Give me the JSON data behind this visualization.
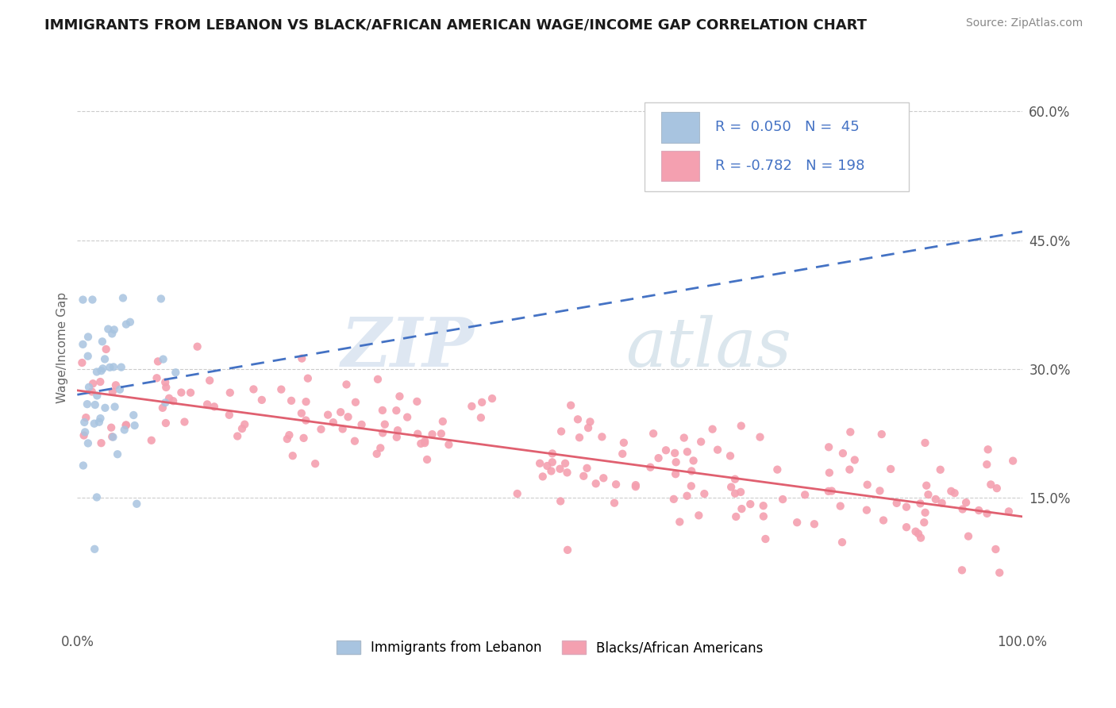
{
  "title": "IMMIGRANTS FROM LEBANON VS BLACK/AFRICAN AMERICAN WAGE/INCOME GAP CORRELATION CHART",
  "source": "Source: ZipAtlas.com",
  "ylabel": "Wage/Income Gap",
  "x_min": 0.0,
  "x_max": 1.0,
  "y_min": 0.0,
  "y_max": 0.65,
  "y_ticks": [
    0.15,
    0.3,
    0.45,
    0.6
  ],
  "y_tick_labels": [
    "15.0%",
    "30.0%",
    "45.0%",
    "60.0%"
  ],
  "x_ticks": [
    0.0,
    1.0
  ],
  "x_tick_labels": [
    "0.0%",
    "100.0%"
  ],
  "R_lebanon": 0.05,
  "N_lebanon": 45,
  "R_black": -0.782,
  "N_black": 198,
  "legend_label_lebanon": "Immigrants from Lebanon",
  "legend_label_black": "Blacks/African Americans",
  "color_lebanon": "#a8c4e0",
  "color_black": "#f4a0b0",
  "color_lebanon_line": "#4472c4",
  "color_black_line": "#e06070",
  "color_text_blue": "#4472c4",
  "background_color": "#ffffff",
  "watermark_zip": "ZIP",
  "watermark_atlas": "atlas",
  "seed": 42,
  "leb_line_x0": 0.0,
  "leb_line_y0": 0.27,
  "leb_line_x1": 1.0,
  "leb_line_y1": 0.46,
  "blk_line_x0": 0.0,
  "blk_line_y0": 0.275,
  "blk_line_x1": 1.0,
  "blk_line_y1": 0.128
}
